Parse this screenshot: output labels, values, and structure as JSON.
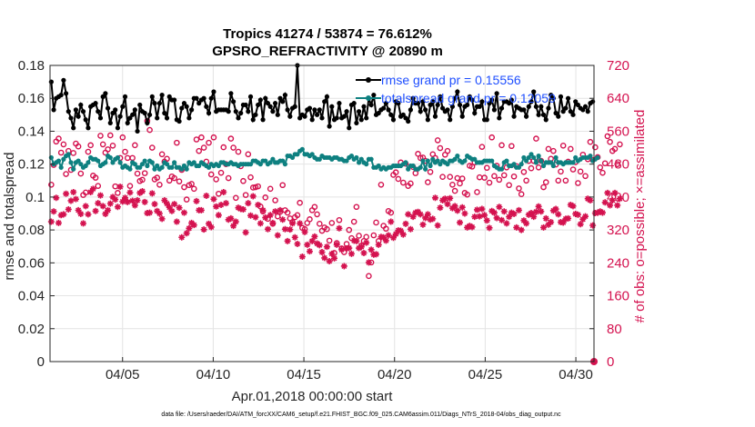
{
  "chart_data": {
    "type": "line",
    "title": "Tropics 41274 / 53874 = 76.612%",
    "subtitle": "GPSRO_REFRACTIVITY @ 20890 m",
    "xlabel": "Apr.01,2018 00:00:00 start",
    "ylabel": "rmse and totalspread",
    "ylabel_right": "# of obs: o=possible; ×=assimilated",
    "footer": "data file: /Users/raeder/DAI/ATM_forcXX/CAM6_setup/f.e21.FHIST_BGC.f09_025.CAM6assim.011/Diags_NTrS_2018-04/obs_diag_output.nc",
    "x_tick_labels": [
      "04/05",
      "04/10",
      "04/15",
      "04/20",
      "04/25",
      "04/30"
    ],
    "x_tick_days": [
      4,
      9,
      14,
      19,
      24,
      29
    ],
    "xlim_days": [
      0,
      30
    ],
    "ylim": [
      0,
      0.18
    ],
    "y_ticks": [
      0,
      0.02,
      0.04,
      0.06,
      0.08,
      0.1,
      0.12,
      0.14,
      0.16,
      0.18
    ],
    "y_tick_labels": [
      "0",
      "0.02",
      "0.04",
      "0.06",
      "0.08",
      "0.1",
      "0.12",
      "0.14",
      "0.16",
      "0.18"
    ],
    "ylim_right": [
      0,
      720
    ],
    "y_right_ticks": [
      0,
      80,
      160,
      240,
      320,
      400,
      480,
      560,
      640,
      720
    ],
    "y_right_tick_labels": [
      "0",
      "80",
      "160",
      "240",
      "320",
      "400",
      "480",
      "560",
      "640",
      "720"
    ],
    "grid": true,
    "legend_position": "top-right",
    "colors": {
      "rmse": "#000000",
      "spread": "#0e8080",
      "obs": "#d4124f",
      "legend_text": "#1f4fff",
      "grid": "#e4e4e4"
    },
    "series": [
      {
        "name": "rmse grand pr",
        "legend": "rmse grand pr = 0.15556",
        "axis": "left",
        "values": [
          0.17,
          0.153,
          0.16,
          0.161,
          0.162,
          0.171,
          0.163,
          0.152,
          0.148,
          0.142,
          0.153,
          0.149,
          0.156,
          0.152,
          0.147,
          0.142,
          0.155,
          0.156,
          0.157,
          0.152,
          0.148,
          0.161,
          0.163,
          0.154,
          0.145,
          0.151,
          0.153,
          0.142,
          0.149,
          0.155,
          0.161,
          0.145,
          0.148,
          0.15,
          0.153,
          0.14,
          0.156,
          0.152,
          0.151,
          0.145,
          0.15,
          0.161,
          0.157,
          0.148,
          0.157,
          0.162,
          0.151,
          0.148,
          0.161,
          0.159,
          0.159,
          0.147,
          0.146,
          0.154,
          0.157,
          0.155,
          0.148,
          0.153,
          0.16,
          0.16,
          0.157,
          0.159,
          0.16,
          0.155,
          0.151,
          0.16,
          0.164,
          0.152,
          0.153,
          0.153,
          0.153,
          0.153,
          0.152,
          0.163,
          0.158,
          0.152,
          0.148,
          0.151,
          0.156,
          0.156,
          0.152,
          0.161,
          0.147,
          0.15,
          0.156,
          0.159,
          0.147,
          0.16,
          0.157,
          0.155,
          0.152,
          0.157,
          0.15,
          0.16,
          0.158,
          0.162,
          0.153,
          0.149,
          0.154,
          0.155,
          0.18,
          0.148,
          0.15,
          0.149,
          0.153,
          0.154,
          0.147,
          0.153,
          0.15,
          0.153,
          0.148,
          0.158,
          0.161,
          0.143,
          0.155,
          0.147,
          0.148,
          0.157,
          0.148,
          0.149,
          0.152,
          0.142,
          0.156,
          0.157,
          0.145,
          0.152,
          0.147,
          0.155,
          0.148,
          0.16,
          0.156,
          0.162,
          0.15,
          0.151,
          0.153,
          0.154,
          0.157,
          0.153,
          0.15,
          0.147,
          0.158,
          0.157,
          0.149,
          0.15,
          0.148,
          0.146,
          0.153,
          0.16,
          0.157,
          0.157,
          0.152,
          0.158,
          0.153,
          0.147,
          0.156,
          0.158,
          0.149,
          0.156,
          0.161,
          0.154,
          0.152,
          0.153,
          0.147,
          0.155,
          0.16,
          0.164,
          0.156,
          0.149,
          0.155,
          0.156,
          0.161,
          0.159,
          0.151,
          0.155,
          0.155,
          0.158,
          0.147,
          0.147,
          0.157,
          0.159,
          0.153,
          0.163,
          0.148,
          0.154,
          0.158,
          0.158,
          0.157,
          0.159,
          0.149,
          0.155,
          0.154,
          0.153,
          0.153,
          0.149,
          0.155,
          0.158,
          0.164,
          0.155,
          0.15,
          0.155,
          0.15,
          0.147,
          0.154,
          0.162,
          0.16,
          0.151,
          0.149,
          0.161,
          0.152,
          0.154,
          0.16,
          0.152,
          0.15,
          0.158,
          0.156,
          0.154,
          0.153,
          0.155,
          0.152,
          0.157,
          0.158
        ]
      },
      {
        "name": "totalspread grand pr",
        "legend": "totalspread grand pr = 0.12059",
        "axis": "left",
        "values": [
          0.124,
          0.12,
          0.121,
          0.122,
          0.118,
          0.123,
          0.125,
          0.126,
          0.121,
          0.117,
          0.121,
          0.122,
          0.12,
          0.118,
          0.119,
          0.121,
          0.124,
          0.123,
          0.123,
          0.122,
          0.119,
          0.12,
          0.121,
          0.125,
          0.124,
          0.121,
          0.123,
          0.124,
          0.121,
          0.118,
          0.119,
          0.118,
          0.117,
          0.121,
          0.12,
          0.118,
          0.118,
          0.12,
          0.122,
          0.119,
          0.122,
          0.121,
          0.117,
          0.119,
          0.117,
          0.118,
          0.121,
          0.12,
          0.118,
          0.118,
          0.121,
          0.118,
          0.118,
          0.117,
          0.119,
          0.117,
          0.121,
          0.12,
          0.121,
          0.119,
          0.119,
          0.121,
          0.12,
          0.119,
          0.118,
          0.12,
          0.119,
          0.12,
          0.119,
          0.121,
          0.121,
          0.12,
          0.12,
          0.121,
          0.12,
          0.12,
          0.119,
          0.12,
          0.12,
          0.12,
          0.12,
          0.12,
          0.122,
          0.122,
          0.121,
          0.12,
          0.122,
          0.122,
          0.12,
          0.121,
          0.123,
          0.121,
          0.121,
          0.122,
          0.122,
          0.12,
          0.125,
          0.125,
          0.124,
          0.126,
          0.126,
          0.128,
          0.129,
          0.126,
          0.126,
          0.125,
          0.126,
          0.124,
          0.123,
          0.123,
          0.125,
          0.124,
          0.124,
          0.124,
          0.123,
          0.124,
          0.124,
          0.123,
          0.123,
          0.122,
          0.122,
          0.124,
          0.125,
          0.123,
          0.124,
          0.121,
          0.123,
          0.121,
          0.12,
          0.123,
          0.123,
          0.118,
          0.118,
          0.119,
          0.117,
          0.118,
          0.117,
          0.118,
          0.118,
          0.119,
          0.119,
          0.119,
          0.119,
          0.12,
          0.121,
          0.117,
          0.119,
          0.119,
          0.117,
          0.117,
          0.118,
          0.122,
          0.117,
          0.122,
          0.119,
          0.123,
          0.121,
          0.122,
          0.12,
          0.122,
          0.121,
          0.12,
          0.122,
          0.122,
          0.123,
          0.125,
          0.122,
          0.121,
          0.122,
          0.125,
          0.124,
          0.123,
          0.123,
          0.121,
          0.121,
          0.121,
          0.122,
          0.122,
          0.122,
          0.122,
          0.119,
          0.118,
          0.117,
          0.117,
          0.121,
          0.122,
          0.119,
          0.119,
          0.12,
          0.118,
          0.118,
          0.12,
          0.124,
          0.122,
          0.124,
          0.126,
          0.124,
          0.121,
          0.125,
          0.122,
          0.119,
          0.121,
          0.121,
          0.121,
          0.119,
          0.124,
          0.121,
          0.121,
          0.12,
          0.121,
          0.121,
          0.121,
          0.121,
          0.124,
          0.122,
          0.123,
          0.124,
          0.124,
          0.124,
          0.125,
          0.122,
          0.123,
          0.124
        ]
      },
      {
        "name": "obs possible",
        "axis": "right",
        "values": [
          430,
          478,
          535,
          542,
          508,
          528,
          456,
          512,
          466,
          507,
          530,
          523,
          457,
          405,
          411,
          510,
          526,
          452,
          447,
          427,
          549,
          528,
          508,
          516,
          550,
          525,
          426,
          410,
          495,
          545,
          510,
          495,
          427,
          495,
          526,
          457,
          439,
          442,
          458,
          585,
          563,
          520,
          443,
          447,
          430,
          504,
          486,
          493,
          440,
          450,
          446,
          532,
          438,
          466,
          424,
          394,
          429,
          432,
          420,
          540,
          512,
          545,
          520,
          486,
          532,
          455,
          545,
          443,
          408,
          459,
          521,
          480,
          446,
          542,
          520,
          398,
          510,
          475,
          439,
          405,
          504,
          448,
          423,
          424,
          426,
          377,
          365,
          399,
          347,
          420,
          335,
          392,
          353,
          364,
          429,
          368,
          362,
          348,
          339,
          351,
          356,
          386,
          325,
          322,
          337,
          346,
          368,
          376,
          358,
          335,
          318,
          326,
          322,
          294,
          337,
          264,
          288,
          344,
          275,
          266,
          286,
          320,
          300,
          340,
          376,
          306,
          282,
          293,
          303,
          208,
          241,
          307,
          338,
          293,
          430,
          330,
          323,
          366,
          362,
          454,
          460,
          444,
          484,
          435,
          481,
          427,
          433,
          473,
          458,
          505,
          495,
          496,
          488,
          436,
          461,
          504,
          495,
          538,
          519,
          449,
          503,
          512,
          449,
          430,
          415,
          446,
          433,
          445,
          410,
          406,
          476,
          474,
          484,
          412,
          448,
          522,
          447,
          471,
          435,
          545,
          451,
          476,
          442,
          526,
          453,
          472,
          429,
          524,
          450,
          475,
          421,
          407,
          461,
          440,
          488,
          470,
          488,
          542,
          472,
          488,
          424,
          436,
          517,
          493,
          512,
          479,
          440,
          462,
          525,
          440,
          486,
          517,
          467,
          485,
          434,
          462,
          503,
          451,
          492,
          534,
          490,
          521,
          497,
          472,
          459,
          482,
          548,
          534,
          512,
          517,
          480,
          528
        ]
      },
      {
        "name": "obs assimilated",
        "axis": "right",
        "values": [
          340,
          365,
          398,
          337,
          356,
          358,
          408,
          370,
          391,
          412,
          395,
          368,
          359,
          336,
          378,
          358,
          412,
          420,
          366,
          385,
          404,
          378,
          359,
          368,
          384,
          400,
          394,
          376,
          425,
          389,
          398,
          388,
          411,
          391,
          380,
          392,
          410,
          414,
          388,
          361,
          362,
          409,
          383,
          366,
          360,
          347,
          392,
          384,
          375,
          366,
          383,
          340,
          374,
          302,
          362,
          312,
          324,
          337,
          332,
          390,
          368,
          368,
          321,
          403,
          335,
          327,
          395,
          377,
          356,
          381,
          412,
          385,
          345,
          348,
          330,
          340,
          374,
          371,
          370,
          314,
          385,
          355,
          402,
          351,
          381,
          336,
          368,
          350,
          322,
          356,
          337,
          365,
          307,
          368,
          345,
          322,
          293,
          321,
          336,
          302,
          286,
          336,
          255,
          315,
          284,
          268,
          293,
          304,
          287,
          283,
          266,
          252,
          279,
          244,
          262,
          251,
          284,
          324,
          272,
          232,
          275,
          276,
          262,
          294,
          293,
          276,
          279,
          264,
          289,
          241,
          272,
          260,
          261,
          284,
          303,
          302,
          294,
          307,
          340,
          301,
          310,
          319,
          318,
          309,
          335,
          358,
          322,
          352,
          362,
          364,
          358,
          333,
          349,
          358,
          345,
          347,
          398,
          331,
          374,
          392,
          396,
          383,
          397,
          373,
          378,
          367,
          338,
          375,
          360,
          326,
          330,
          327,
          352,
          369,
          353,
          371,
          356,
          343,
          325,
          366,
          362,
          349,
          376,
          344,
          365,
          336,
          352,
          362,
          359,
          326,
          368,
          320,
          343,
          336,
          357,
          361,
          352,
          364,
          377,
          365,
          326,
          348,
          333,
          339,
          367,
          371,
          358,
          339,
          338,
          347,
          348,
          381,
          378,
          359,
          357,
          334,
          346,
          353,
          396,
          392,
          331,
          361,
          362,
          365,
          362,
          387,
          410,
          380,
          392,
          410,
          380,
          396
        ]
      }
    ]
  }
}
